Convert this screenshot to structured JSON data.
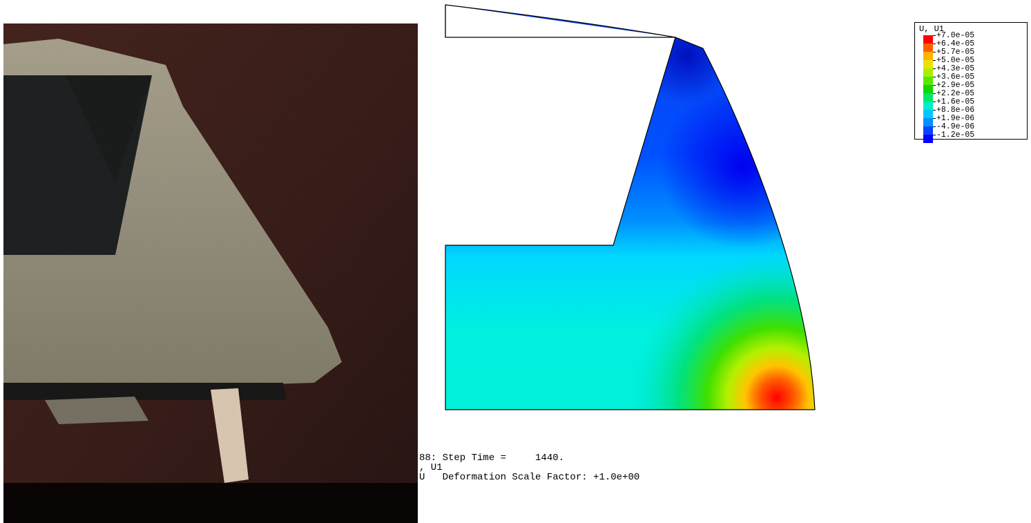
{
  "legend": {
    "title": "U, U1",
    "labels": [
      "+7.0e-05",
      "+6.4e-05",
      "+5.7e-05",
      "+5.0e-05",
      "+4.3e-05",
      "+3.6e-05",
      "+2.9e-05",
      "+2.2e-05",
      "+1.6e-05",
      "+8.8e-06",
      "+1.9e-06",
      "-4.9e-06",
      "-1.2e-05"
    ],
    "colors": [
      "#ff0000",
      "#ff5e00",
      "#ffb400",
      "#f0e000",
      "#a8f000",
      "#58e800",
      "#10d800",
      "#00e86a",
      "#00f0c8",
      "#00c8ff",
      "#0090ff",
      "#0046ff",
      "#0000ff"
    ]
  },
  "info": {
    "step_line": "88: Step Time =     1440.",
    "var_line": ", U1",
    "scale_line": "U   Deformation Scale Factor: +1.0e+00"
  }
}
